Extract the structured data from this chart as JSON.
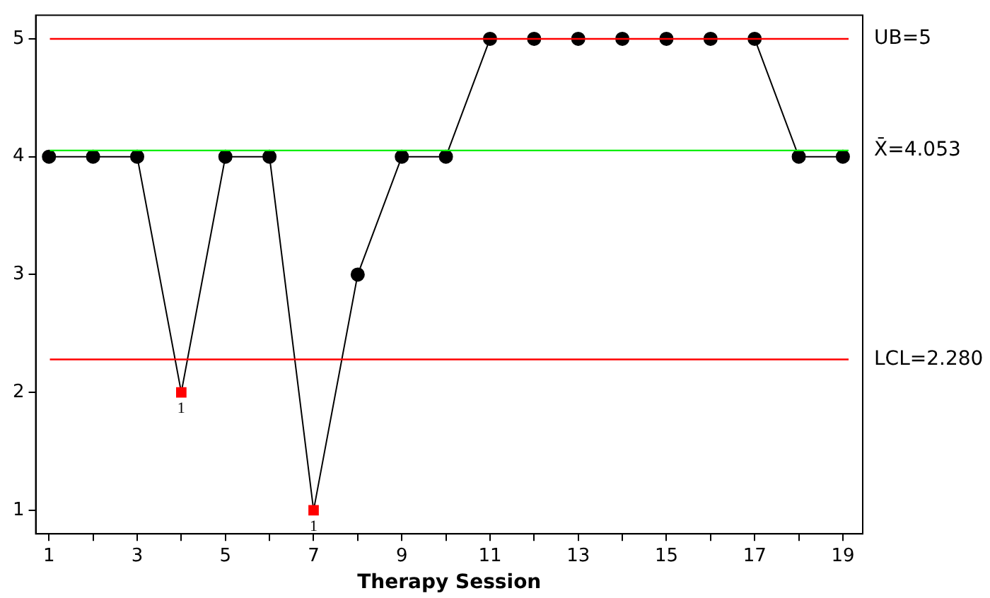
{
  "chart_data": {
    "type": "line",
    "xlabel": "Therapy Session",
    "x": [
      1,
      2,
      3,
      4,
      5,
      6,
      7,
      8,
      9,
      10,
      11,
      12,
      13,
      14,
      15,
      16,
      17,
      18,
      19
    ],
    "series": [
      {
        "color": "#000000",
        "values": [
          4,
          4,
          4,
          2,
          4,
          4,
          1,
          3,
          4,
          4,
          5,
          5,
          5,
          5,
          5,
          5,
          5,
          4,
          4
        ],
        "colors": [
          "#000000",
          "#000000",
          "#000000",
          "#ff0000",
          "#000000",
          "#000000",
          "#ff0000",
          "#000000",
          "#000000",
          "#000000",
          "#000000",
          "#000000",
          "#000000",
          "#000000",
          "#000000",
          "#000000",
          "#000000",
          "#000000",
          "#000000"
        ]
      }
    ],
    "xlim": [
      0.7,
      19.45
    ],
    "xticks": [
      1,
      {
        "value": 2,
        "label": null
      },
      3,
      {
        "value": 4,
        "label": null
      },
      5,
      {
        "value": 6,
        "label": null
      },
      7,
      {
        "value": 8,
        "label": null
      },
      9,
      {
        "value": 10,
        "label": null
      },
      11,
      {
        "value": 12,
        "label": null
      },
      13,
      {
        "value": 14,
        "label": null
      },
      15,
      {
        "value": 16,
        "label": null
      },
      17,
      {
        "value": 18,
        "label": null
      },
      19
    ],
    "ylim": [
      0.8,
      5.2
    ],
    "yticks": [
      1,
      2,
      3,
      4,
      5
    ],
    "ref_lines": [
      {
        "axis": "y",
        "value": 5,
        "label": "UB=5",
        "color": "#ff0000"
      },
      {
        "axis": "y",
        "value": 4.053,
        "label": "X̄=4.053",
        "color": "#00ee00"
      },
      {
        "axis": "y",
        "value": 2.28,
        "label": "LCL=2.280",
        "color": "#ff0000"
      }
    ],
    "annotations": [
      {
        "text": "1",
        "x": 4,
        "y": 2
      },
      {
        "text": "1",
        "x": 7,
        "y": 1
      }
    ],
    "grid": false,
    "legend": false,
    "marker": "circle",
    "line_style": "solid"
  }
}
